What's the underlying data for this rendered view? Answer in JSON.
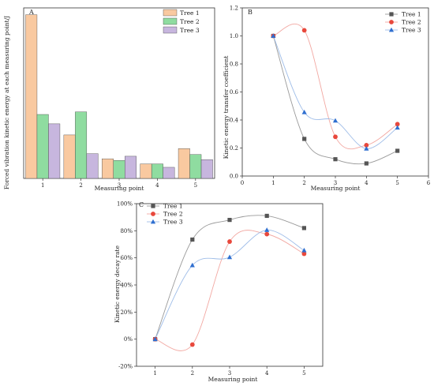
{
  "chart_data": [
    {
      "panel": "A",
      "type": "bar",
      "xlabel": "Measuring point",
      "ylabel": "Forced vibration kinetic energy at each measuring point/J",
      "categories": [
        "1",
        "2",
        "3",
        "4",
        "5"
      ],
      "ylim": [
        0,
        1000
      ],
      "series": [
        {
          "name": "Tree 1",
          "color": "#f9c9a0",
          "values": [
            960,
            255,
            115,
            85,
            175
          ]
        },
        {
          "name": "Tree 2",
          "color": "#8fdca0",
          "values": [
            375,
            390,
            105,
            85,
            140
          ]
        },
        {
          "name": "Tree 3",
          "color": "#c7b6de",
          "values": [
            320,
            145,
            130,
            65,
            110
          ]
        }
      ],
      "legend_position": "top-right"
    },
    {
      "panel": "B",
      "type": "line",
      "xlabel": "Measuring point",
      "ylabel": "Kinetic energy transfer coefficient",
      "xlim": [
        0,
        6
      ],
      "ylim": [
        0,
        1.2
      ],
      "xticks": [
        "0",
        "1",
        "2",
        "3",
        "4",
        "5",
        "6"
      ],
      "yticks": [
        "0.0",
        "0.2",
        "0.4",
        "0.6",
        "0.8",
        "1.0",
        "1.2"
      ],
      "x": [
        1,
        2,
        3,
        4,
        5
      ],
      "series": [
        {
          "name": "Tree 1",
          "color": "#555555",
          "marker": "square",
          "values": [
            1.0,
            0.265,
            0.12,
            0.09,
            0.18
          ]
        },
        {
          "name": "Tree 2",
          "color": "#e8483c",
          "marker": "circle",
          "values": [
            1.0,
            1.04,
            0.28,
            0.22,
            0.37
          ]
        },
        {
          "name": "Tree 3",
          "color": "#2f6fd0",
          "marker": "triangle",
          "values": [
            1.0,
            0.455,
            0.395,
            0.195,
            0.345
          ]
        }
      ],
      "legend_position": "top-right"
    },
    {
      "panel": "C",
      "type": "line",
      "xlabel": "Measuring point",
      "ylabel": "Kinetic energy decay rate",
      "xlim": [
        0.5,
        5.5
      ],
      "ylim": [
        -20,
        100
      ],
      "xticks": [
        "1",
        "2",
        "3",
        "4",
        "5"
      ],
      "yticks": [
        "-20%",
        "0%",
        "20%",
        "40%",
        "60%",
        "80%",
        "100%"
      ],
      "x": [
        1,
        2,
        3,
        4,
        5
      ],
      "series": [
        {
          "name": "Tree 1",
          "color": "#555555",
          "marker": "square",
          "values": [
            0,
            73.5,
            88,
            91,
            82
          ]
        },
        {
          "name": "Tree 2",
          "color": "#e8483c",
          "marker": "circle",
          "values": [
            0,
            -4,
            72,
            77.5,
            63
          ]
        },
        {
          "name": "Tree 3",
          "color": "#2f6fd0",
          "marker": "triangle",
          "values": [
            0,
            54.5,
            60.5,
            80.5,
            65.5
          ]
        }
      ],
      "legend_position": "top-left"
    }
  ]
}
